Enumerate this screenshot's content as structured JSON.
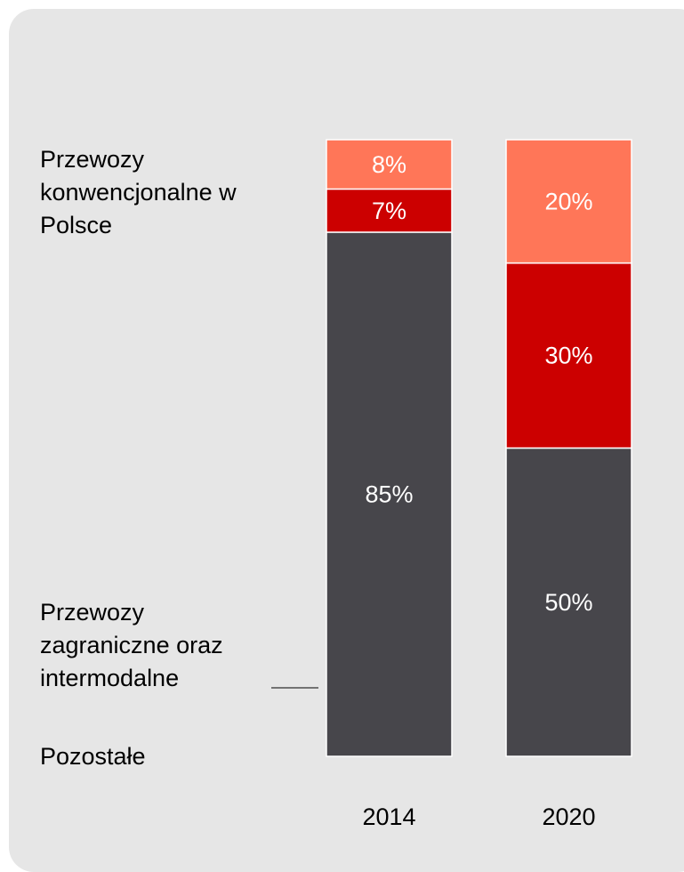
{
  "chart_data": {
    "type": "stacked_bar",
    "categories": [
      "2014",
      "2020"
    ],
    "series": [
      {
        "name": "Przewozy konwencjonalne w Polsce",
        "color": "#47464b",
        "values": [
          85,
          50
        ],
        "value_labels": [
          "85%",
          "50%"
        ]
      },
      {
        "name": "Przewozy zagraniczne oraz intermodalne",
        "color": "#cc0000",
        "values": [
          7,
          30
        ],
        "value_labels": [
          "7%",
          "30%"
        ]
      },
      {
        "name": "Pozostałe",
        "color": "#ff7658",
        "values": [
          8,
          20
        ],
        "value_labels": [
          "8%",
          "20%"
        ]
      }
    ]
  }
}
